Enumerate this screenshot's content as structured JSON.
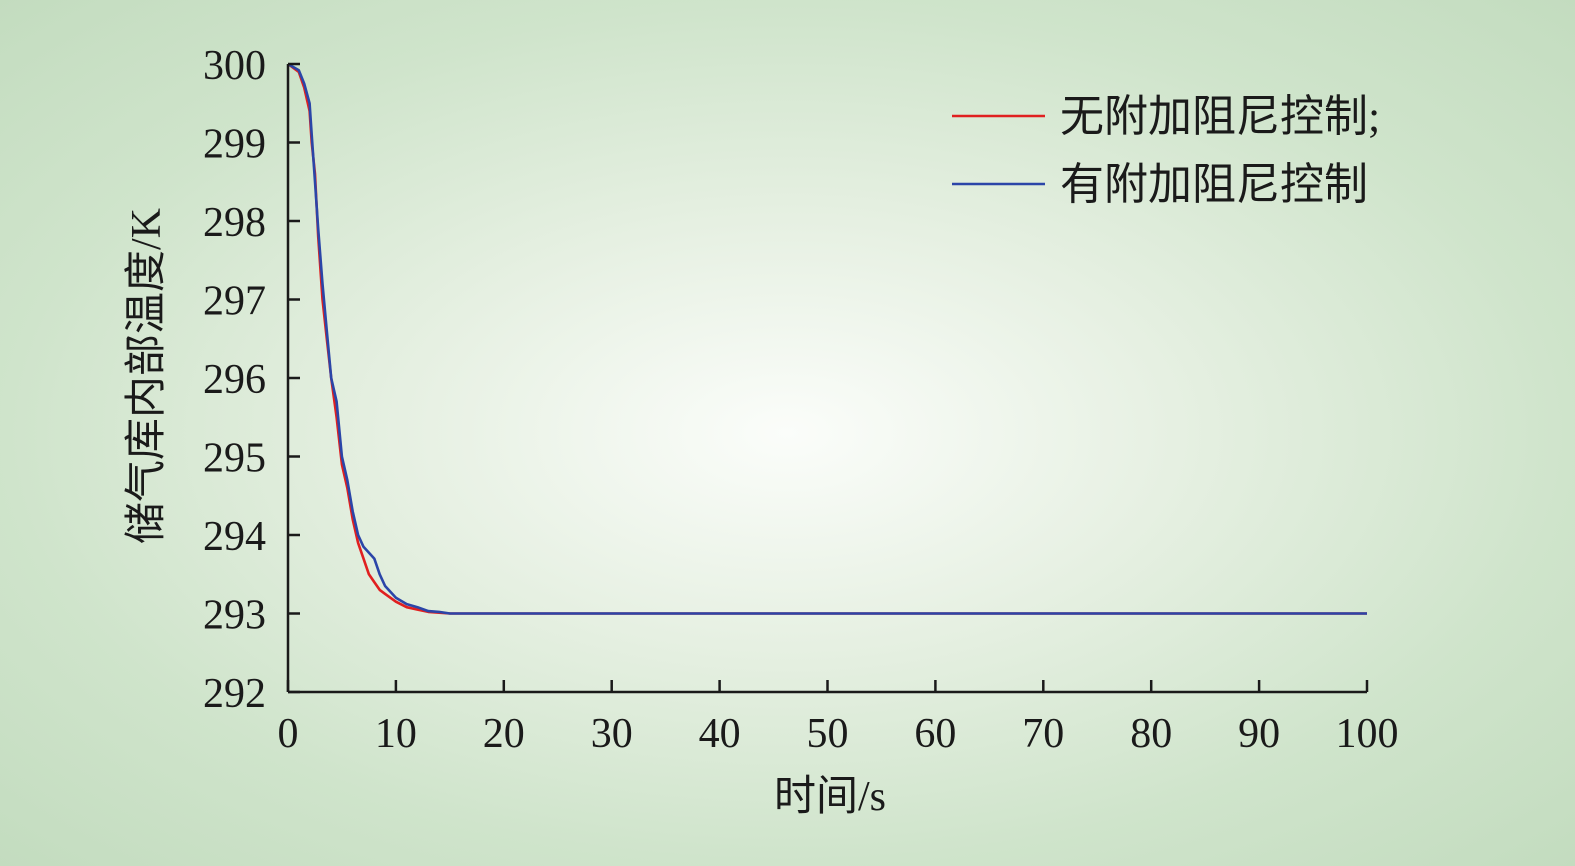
{
  "chart_data": {
    "type": "line",
    "title": "",
    "xlabel": "时间/s",
    "ylabel": "储气库内部温度/K",
    "xlim": [
      0,
      100
    ],
    "ylim": [
      292,
      300
    ],
    "xticks": [
      0,
      10,
      20,
      30,
      40,
      50,
      60,
      70,
      80,
      90,
      100
    ],
    "yticks": [
      292,
      293,
      294,
      295,
      296,
      297,
      298,
      299,
      300
    ],
    "legend_position": "top-right",
    "grid": false,
    "series": [
      {
        "name": "无附加阻尼控制;",
        "color": "#e02020",
        "x": [
          0,
          1.0,
          1.5,
          2.0,
          2.2,
          2.5,
          2.8,
          3.2,
          3.6,
          4.0,
          4.5,
          5.0,
          5.5,
          6.0,
          6.5,
          7.0,
          7.5,
          8.0,
          8.5,
          9.0,
          10.0,
          11.0,
          12.0,
          13.0,
          14.0,
          15.0,
          20.0,
          30.0,
          50.0,
          70.0,
          100.0
        ],
        "y": [
          300,
          299.9,
          299.7,
          299.4,
          299.0,
          298.6,
          297.8,
          297.0,
          296.5,
          296.0,
          295.5,
          294.9,
          294.6,
          294.2,
          293.9,
          293.7,
          293.5,
          293.4,
          293.3,
          293.25,
          293.15,
          293.08,
          293.05,
          293.02,
          293.01,
          293.0,
          293.0,
          293.0,
          293.0,
          293.0,
          293.0
        ]
      },
      {
        "name": "有附加阻尼控制",
        "color": "#2b45a8",
        "x": [
          0,
          1.0,
          1.5,
          2.0,
          2.2,
          2.5,
          2.8,
          3.2,
          3.6,
          4.0,
          4.5,
          5.0,
          5.5,
          6.0,
          6.5,
          7.0,
          8.0,
          8.5,
          9.0,
          10.0,
          11.0,
          12.0,
          13.0,
          14.0,
          15.0,
          20.0,
          30.0,
          50.0,
          70.0,
          100.0
        ],
        "y": [
          300,
          299.92,
          299.75,
          299.5,
          299.1,
          298.5,
          297.9,
          297.2,
          296.6,
          296.0,
          295.7,
          295.0,
          294.7,
          294.3,
          294.0,
          293.85,
          293.7,
          293.5,
          293.35,
          293.2,
          293.12,
          293.08,
          293.03,
          293.02,
          293.0,
          293.0,
          293.0,
          293.0,
          293.0,
          293.0
        ]
      }
    ]
  }
}
